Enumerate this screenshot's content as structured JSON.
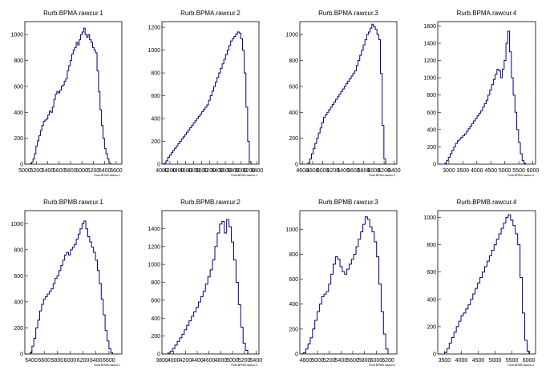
{
  "chart_data": [
    {
      "type": "histogram",
      "title": "Rurb.BPMA.rawcur.1",
      "xlabel": "Rurb.BPMA.rawcur.1",
      "xlim": [
        5000,
        6700
      ],
      "ylim": [
        0,
        1100
      ],
      "xticks": [
        5000,
        5200,
        5400,
        5600,
        5800,
        6000,
        6200,
        6400,
        6600
      ],
      "xtick_labels": [
        "5000",
        "5200",
        "5400",
        "5600",
        "5800",
        "6000",
        "6200",
        "6400",
        "6600"
      ],
      "yticks": [
        0,
        200,
        400,
        600,
        800,
        1000
      ],
      "yticks_labels": [
        "0",
        "200",
        "400",
        "600",
        "800",
        "1000"
      ],
      "bins": {
        "start": 5090,
        "end": 6500,
        "values": [
          5,
          15,
          40,
          80,
          140,
          180,
          220,
          260,
          300,
          330,
          340,
          350,
          380,
          410,
          400,
          440,
          500,
          540,
          560,
          550,
          570,
          600,
          610,
          640,
          660,
          720,
          760,
          800,
          850,
          880,
          900,
          940,
          920,
          960,
          1000,
          1020,
          1050,
          1000,
          980,
          1000,
          960,
          940,
          900,
          880,
          860,
          720,
          560,
          420,
          300,
          200,
          120,
          80,
          40,
          10
        ]
      }
    },
    {
      "type": "histogram",
      "title": "Rurb.BPMA.rawcur.2",
      "xlabel": "Rurb.BPMA.rawcur.2",
      "xlim": [
        4000,
        6450
      ],
      "ylim": [
        0,
        1250
      ],
      "xticks": [
        4000,
        4200,
        4400,
        4600,
        4800,
        5000,
        5200,
        5400,
        5600,
        5800,
        6000,
        6200,
        6400
      ],
      "xtick_labels": [
        "4000",
        "4200",
        "4400",
        "4600",
        "4800",
        "5000",
        "5200",
        "5400",
        "5600",
        "5800",
        "6000",
        "6200",
        "6400"
      ],
      "yticks": [
        0,
        200,
        400,
        600,
        800,
        1000,
        1200
      ],
      "yticks_labels": [
        "0",
        "200",
        "400",
        "600",
        "800",
        "1000",
        "1200"
      ],
      "bins": {
        "start": 4060,
        "end": 6250,
        "values": [
          10,
          30,
          60,
          80,
          100,
          120,
          140,
          160,
          180,
          200,
          220,
          240,
          260,
          280,
          300,
          320,
          340,
          360,
          380,
          400,
          420,
          440,
          460,
          480,
          500,
          520,
          560,
          600,
          640,
          680,
          720,
          760,
          800,
          840,
          880,
          920,
          960,
          1000,
          1040,
          1080,
          1100,
          1120,
          1140,
          1160,
          1150,
          1100,
          1000,
          800,
          500,
          200,
          20
        ]
      }
    },
    {
      "type": "histogram",
      "title": "Rurb.BPMA.rawcur.3",
      "xlabel": "Rurb.BPMA.rawcur.3",
      "xlim": [
        4550,
        6450
      ],
      "ylim": [
        0,
        1100
      ],
      "xticks": [
        4600,
        4800,
        5000,
        5200,
        5400,
        5600,
        5800,
        6000,
        6200,
        6400
      ],
      "xtick_labels": [
        "4600",
        "4800",
        "5000",
        "5200",
        "5400",
        "5600",
        "5800",
        "6000",
        "6200",
        "6400"
      ],
      "yticks": [
        0,
        200,
        400,
        600,
        800,
        1000
      ],
      "yticks_labels": [
        "0",
        "200",
        "400",
        "600",
        "800",
        "1000"
      ],
      "bins": {
        "start": 4710,
        "end": 6230,
        "values": [
          10,
          40,
          80,
          120,
          160,
          200,
          240,
          280,
          320,
          360,
          380,
          400,
          420,
          440,
          460,
          480,
          500,
          520,
          540,
          560,
          580,
          600,
          620,
          640,
          660,
          680,
          700,
          720,
          760,
          800,
          840,
          880,
          920,
          960,
          1000,
          1020,
          1050,
          1080,
          1060,
          1040,
          1000,
          960,
          700,
          300,
          40
        ]
      }
    },
    {
      "type": "histogram",
      "title": "Rurb.BPMA.rawcur.4",
      "xlabel": "Rurb.BPMA.rawcur.4",
      "xlim": [
        2600,
        6100
      ],
      "ylim": [
        0,
        1650
      ],
      "xticks": [
        3000,
        3500,
        4000,
        4500,
        5000,
        5500,
        6000
      ],
      "xtick_labels": [
        "3000",
        "3500",
        "4000",
        "4500",
        "5000",
        "5500",
        "6000"
      ],
      "yticks": [
        0,
        200,
        400,
        600,
        800,
        1000,
        1200,
        1400,
        1600
      ],
      "yticks_labels": [
        "0",
        "200",
        "400",
        "600",
        "800",
        "1000",
        "1200",
        "1400",
        "1600"
      ],
      "bins": {
        "start": 2850,
        "end": 5750,
        "values": [
          10,
          40,
          80,
          120,
          160,
          200,
          240,
          270,
          290,
          310,
          330,
          350,
          380,
          410,
          440,
          470,
          500,
          530,
          560,
          590,
          620,
          660,
          700,
          740,
          800,
          860,
          920,
          980,
          1040,
          1100,
          1080,
          1000,
          1100,
          1200,
          1400,
          1540,
          1300,
          1000,
          800,
          600,
          400,
          250,
          120,
          40,
          10
        ]
      }
    },
    {
      "type": "histogram",
      "title": "Rurb.BPMB.rawcur.1",
      "xlabel": "Rurb.BPMB.rawcur.1",
      "xlim": [
        5300,
        6800
      ],
      "ylim": [
        0,
        1100
      ],
      "xticks": [
        5400,
        5600,
        5800,
        6000,
        6200,
        6400,
        6600
      ],
      "xtick_labels": [
        "5400",
        "5600",
        "5800",
        "6000",
        "6200",
        "6400",
        "6600"
      ],
      "yticks": [
        0,
        200,
        400,
        600,
        800,
        1000
      ],
      "yticks_labels": [
        "0",
        "200",
        "400",
        "600",
        "800",
        "1000"
      ],
      "bins": {
        "start": 5380,
        "end": 6660,
        "values": [
          10,
          60,
          120,
          200,
          260,
          330,
          380,
          420,
          440,
          460,
          480,
          500,
          540,
          580,
          600,
          640,
          680,
          720,
          760,
          780,
          760,
          800,
          820,
          840,
          880,
          920,
          960,
          1000,
          1020,
          960,
          900,
          860,
          820,
          780,
          720,
          640,
          540,
          420,
          300,
          180,
          100,
          40,
          10
        ]
      }
    },
    {
      "type": "histogram",
      "title": "Rurb.BPMB.rawcur.2",
      "xlabel": "Rurb.BPMB.rawcur.2",
      "xlim": [
        3800,
        5450
      ],
      "ylim": [
        0,
        1600
      ],
      "xticks": [
        3800,
        4000,
        4200,
        4400,
        4600,
        4800,
        5000,
        5200,
        5400
      ],
      "xtick_labels": [
        "3800",
        "4000",
        "4200",
        "4400",
        "4600",
        "4800",
        "5000",
        "5200",
        "5400"
      ],
      "yticks": [
        0,
        200,
        400,
        600,
        800,
        1000,
        1200,
        1400
      ],
      "yticks_labels": [
        "0",
        "200",
        "400",
        "600",
        "800",
        "1000",
        "1200",
        "1400"
      ],
      "bins": {
        "start": 3900,
        "end": 5260,
        "values": [
          10,
          30,
          60,
          100,
          140,
          180,
          220,
          270,
          320,
          370,
          420,
          470,
          520,
          580,
          640,
          700,
          780,
          860,
          940,
          1050,
          1200,
          1350,
          1450,
          1480,
          1350,
          1500,
          1420,
          1250,
          1050,
          800,
          550,
          300,
          120,
          40
        ]
      }
    },
    {
      "type": "histogram",
      "title": "Rurb.BPMB.rawcur.3",
      "xlabel": "Rurb.BPMB.rawcur.3",
      "xlim": [
        4700,
        6350
      ],
      "ylim": [
        0,
        1150
      ],
      "xticks": [
        4800,
        5000,
        5200,
        5400,
        5600,
        5800,
        6000,
        6200
      ],
      "xtick_labels": [
        "4800",
        "5000",
        "5200",
        "5400",
        "5600",
        "5800",
        "6000",
        "6200"
      ],
      "yticks": [
        0,
        200,
        400,
        600,
        800,
        1000
      ],
      "yticks_labels": [
        "0",
        "200",
        "400",
        "600",
        "800",
        "1000"
      ],
      "bins": {
        "start": 4760,
        "end": 6200,
        "values": [
          10,
          40,
          80,
          130,
          200,
          270,
          340,
          400,
          460,
          480,
          500,
          560,
          640,
          720,
          780,
          760,
          700,
          660,
          640,
          680,
          720,
          760,
          800,
          860,
          920,
          980,
          1040,
          1100,
          1080,
          1020,
          980,
          900,
          780,
          560,
          340,
          160,
          40
        ]
      }
    },
    {
      "type": "histogram",
      "title": "Rurb.BPMB.rawcur.4",
      "xlabel": "Rurb.BPMB.rawcur.4",
      "xlim": [
        3300,
        6200
      ],
      "ylim": [
        0,
        1050
      ],
      "xticks": [
        3500,
        4000,
        4500,
        5000,
        5500,
        6000
      ],
      "xtick_labels": [
        "3500",
        "4000",
        "4500",
        "5000",
        "5500",
        "6000"
      ],
      "yticks": [
        0,
        200,
        400,
        600,
        800,
        1000
      ],
      "yticks_labels": [
        "0",
        "200",
        "400",
        "600",
        "800",
        "1000"
      ],
      "bins": {
        "start": 3500,
        "end": 6020,
        "values": [
          10,
          40,
          80,
          120,
          160,
          200,
          240,
          280,
          300,
          330,
          360,
          400,
          440,
          480,
          520,
          560,
          600,
          640,
          680,
          720,
          760,
          800,
          840,
          880,
          920,
          960,
          1000,
          1020,
          980,
          940,
          880,
          800,
          560,
          300,
          100,
          20
        ]
      }
    }
  ]
}
